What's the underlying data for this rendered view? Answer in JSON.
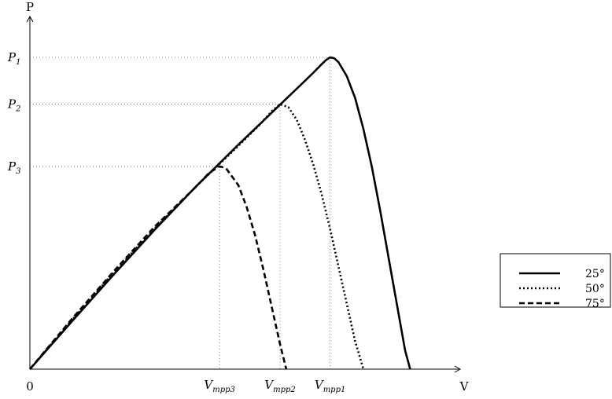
{
  "chart_data": {
    "type": "line",
    "xlabel": "V",
    "ylabel": "P",
    "origin_label": "0",
    "xlim": [
      0,
      1.09
    ],
    "ylim": [
      0,
      1.15
    ],
    "legend_position": "right",
    "y_ticks": [
      {
        "value": 1.0,
        "base": "P",
        "sub": "1"
      },
      {
        "value": 0.85,
        "base": "P",
        "sub": "2"
      },
      {
        "value": 0.65,
        "base": "P",
        "sub": "3"
      }
    ],
    "x_ticks": [
      {
        "value": 0.455,
        "base": "V",
        "sub": "mpp3"
      },
      {
        "value": 0.6,
        "base": "V",
        "sub": "mpp2"
      },
      {
        "value": 0.72,
        "base": "V",
        "sub": "mpp1"
      }
    ],
    "series": [
      {
        "name": "25°",
        "style": "solid",
        "x": [
          0,
          0.1,
          0.2,
          0.3,
          0.4,
          0.5,
          0.55,
          0.6,
          0.65,
          0.68,
          0.7,
          0.71,
          0.72,
          0.73,
          0.74,
          0.76,
          0.78,
          0.8,
          0.82,
          0.84,
          0.86,
          0.88,
          0.9,
          0.912
        ],
        "y": [
          0,
          0.152,
          0.302,
          0.448,
          0.588,
          0.72,
          0.784,
          0.848,
          0.912,
          0.951,
          0.978,
          0.991,
          1.0,
          0.997,
          0.985,
          0.94,
          0.87,
          0.77,
          0.65,
          0.51,
          0.36,
          0.21,
          0.06,
          0
        ]
      },
      {
        "name": "50°",
        "style": "dotted",
        "x": [
          0,
          0.1,
          0.2,
          0.3,
          0.4,
          0.45,
          0.5,
          0.55,
          0.58,
          0.6,
          0.62,
          0.64,
          0.66,
          0.68,
          0.7,
          0.72,
          0.74,
          0.76,
          0.78,
          0.8
        ],
        "y": [
          0,
          0.156,
          0.308,
          0.452,
          0.588,
          0.652,
          0.716,
          0.782,
          0.827,
          0.85,
          0.84,
          0.8,
          0.735,
          0.655,
          0.56,
          0.45,
          0.33,
          0.21,
          0.09,
          0
        ]
      },
      {
        "name": "75°",
        "style": "dashed",
        "x": [
          0,
          0.1,
          0.2,
          0.3,
          0.4,
          0.43,
          0.455,
          0.47,
          0.5,
          0.52,
          0.54,
          0.56,
          0.58,
          0.6,
          0.615
        ],
        "y": [
          0,
          0.16,
          0.312,
          0.458,
          0.587,
          0.63,
          0.65,
          0.645,
          0.59,
          0.52,
          0.43,
          0.32,
          0.2,
          0.08,
          0
        ]
      }
    ]
  }
}
